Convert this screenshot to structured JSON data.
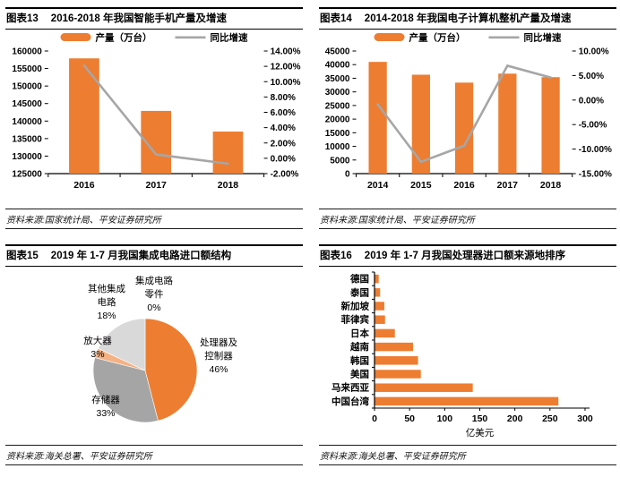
{
  "colors": {
    "bar_orange": "#ED7D31",
    "line_gray": "#A6A6A6",
    "pie_gray": "#A5A5A5",
    "pie_light_gray": "#D9D9D9",
    "pie_peach": "#F4B183",
    "axis_black": "#000000"
  },
  "panels": [
    {
      "tag": "图表13",
      "title": "2016-2018 年我国智能手机产量及增速",
      "source": "资料来源:国家统计局、平安证券研究所"
    },
    {
      "tag": "图表14",
      "title": "2014-2018 年我国电子计算机整机产量及增速",
      "source": "资料来源:国家统计局、平安证券研究所"
    },
    {
      "tag": "图表15",
      "title": "2019 年 1-7 月我国集成电路进口额结构",
      "source": "资料来源:海关总署、平安证券研究所"
    },
    {
      "tag": "图表16",
      "title": "2019 年 1-7 月我国处理器进口额来源地排序",
      "source": "资料来源:海关总署、平安证券研究所"
    }
  ],
  "chart_data": [
    {
      "id": "fig13-smartphone-output",
      "type": "bar",
      "subtype": "bar+line-dual-axis",
      "title": "2016-2018 年我国智能手机产量及增速",
      "categories": [
        "2016",
        "2017",
        "2018"
      ],
      "series": [
        {
          "name": "产量（万台）",
          "kind": "bar",
          "axis": "left",
          "color": "#ED7D31",
          "values": [
            157900,
            142900,
            137000
          ]
        },
        {
          "name": "同比增速",
          "kind": "line",
          "axis": "right",
          "color": "#A6A6A6",
          "unit": "%",
          "values": [
            12.1,
            0.5,
            -0.7
          ]
        }
      ],
      "left_axis": {
        "min": 125000,
        "max": 160000,
        "step": 5000
      },
      "right_axis": {
        "min": -2,
        "max": 14,
        "step": 2,
        "format": "percent2"
      },
      "legend_position": "top",
      "grid": false
    },
    {
      "id": "fig14-computer-output",
      "type": "bar",
      "subtype": "bar+line-dual-axis",
      "title": "2014-2018 年我国电子计算机整机产量及增速",
      "categories": [
        "2014",
        "2015",
        "2016",
        "2017",
        "2018"
      ],
      "series": [
        {
          "name": "产量（万台）",
          "kind": "bar",
          "axis": "left",
          "color": "#ED7D31",
          "values": [
            41000,
            36300,
            33400,
            36700,
            35400
          ]
        },
        {
          "name": "同比增速",
          "kind": "line",
          "axis": "right",
          "color": "#A6A6A6",
          "unit": "%",
          "values": [
            -0.9,
            -12.6,
            -9.3,
            7.0,
            4.6
          ]
        }
      ],
      "left_axis": {
        "min": 0,
        "max": 45000,
        "step": 5000
      },
      "right_axis": {
        "min": -15,
        "max": 10,
        "step": 5,
        "format": "percent2"
      },
      "legend_position": "top",
      "grid": false
    },
    {
      "id": "fig15-ic-import-structure",
      "type": "pie",
      "title": "2019 年 1-7 月我国集成电路进口额结构",
      "start_angle_deg": -90,
      "direction": "clockwise",
      "slices": [
        {
          "label": "处理器及控制器",
          "label_lines": [
            "处理器及",
            "控制器",
            "46%"
          ],
          "value": 46,
          "color": "#ED7D31"
        },
        {
          "label": "存储器",
          "label_lines": [
            "存储器",
            "33%"
          ],
          "value": 33,
          "color": "#A5A5A5"
        },
        {
          "label": "放大器",
          "label_lines": [
            "放大器",
            "3%"
          ],
          "value": 3,
          "color": "#F4B183"
        },
        {
          "label": "其他集成电路",
          "label_lines": [
            "其他集成",
            "电路",
            "18%"
          ],
          "value": 18,
          "color": "#D9D9D9"
        },
        {
          "label": "集成电路零件",
          "label_lines": [
            "集成电路",
            "零件",
            "0%"
          ],
          "value": 0,
          "color": "#FFC000"
        }
      ]
    },
    {
      "id": "fig16-processor-import-origin",
      "type": "bar",
      "orientation": "horizontal",
      "title": "2019 年 1-7 月我国处理器进口额来源地排序",
      "categories": [
        "德国",
        "泰国",
        "新加坡",
        "菲律宾",
        "日本",
        "越南",
        "韩国",
        "美国",
        "马来西亚",
        "中国台湾"
      ],
      "values": [
        6,
        8,
        14,
        15,
        29,
        55,
        62,
        66,
        140,
        262
      ],
      "bar_color": "#ED7D31",
      "xlabel": "亿美元",
      "xlim": [
        0,
        300
      ],
      "xstep": 50,
      "grid": false
    }
  ]
}
